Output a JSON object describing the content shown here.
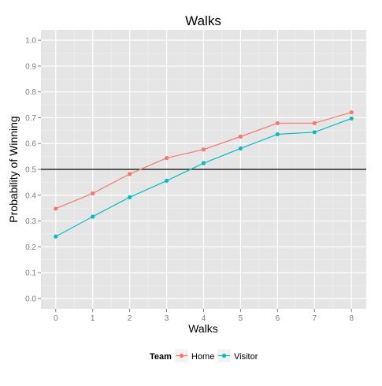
{
  "chart_data": {
    "type": "line",
    "title": "Walks",
    "xlabel": "Walks",
    "ylabel": "Probability of Winning",
    "x": [
      0,
      1,
      2,
      3,
      4,
      5,
      6,
      7,
      8
    ],
    "xlim": [
      -0.4,
      8.4
    ],
    "ylim": [
      -0.04,
      1.04
    ],
    "xticks": [
      "0",
      "1",
      "2",
      "3",
      "4",
      "5",
      "6",
      "7",
      "8"
    ],
    "yticks": [
      "0.0",
      "0.1",
      "0.2",
      "0.3",
      "0.4",
      "0.5",
      "0.6",
      "0.7",
      "0.8",
      "0.9",
      "1.0"
    ],
    "reference_line": {
      "y": 0.5,
      "color": "#000000"
    },
    "grid": true,
    "panel_background": "#e5e5e5",
    "legend": {
      "title": "Team",
      "position": "bottom"
    },
    "series": [
      {
        "name": "Home",
        "color": "#f8766d",
        "values": [
          0.348,
          0.407,
          0.482,
          0.544,
          0.577,
          0.627,
          0.679,
          0.679,
          0.721
        ]
      },
      {
        "name": "Visitor",
        "color": "#00bfc4",
        "values": [
          0.24,
          0.317,
          0.392,
          0.456,
          0.524,
          0.581,
          0.636,
          0.644,
          0.697
        ]
      }
    ]
  }
}
